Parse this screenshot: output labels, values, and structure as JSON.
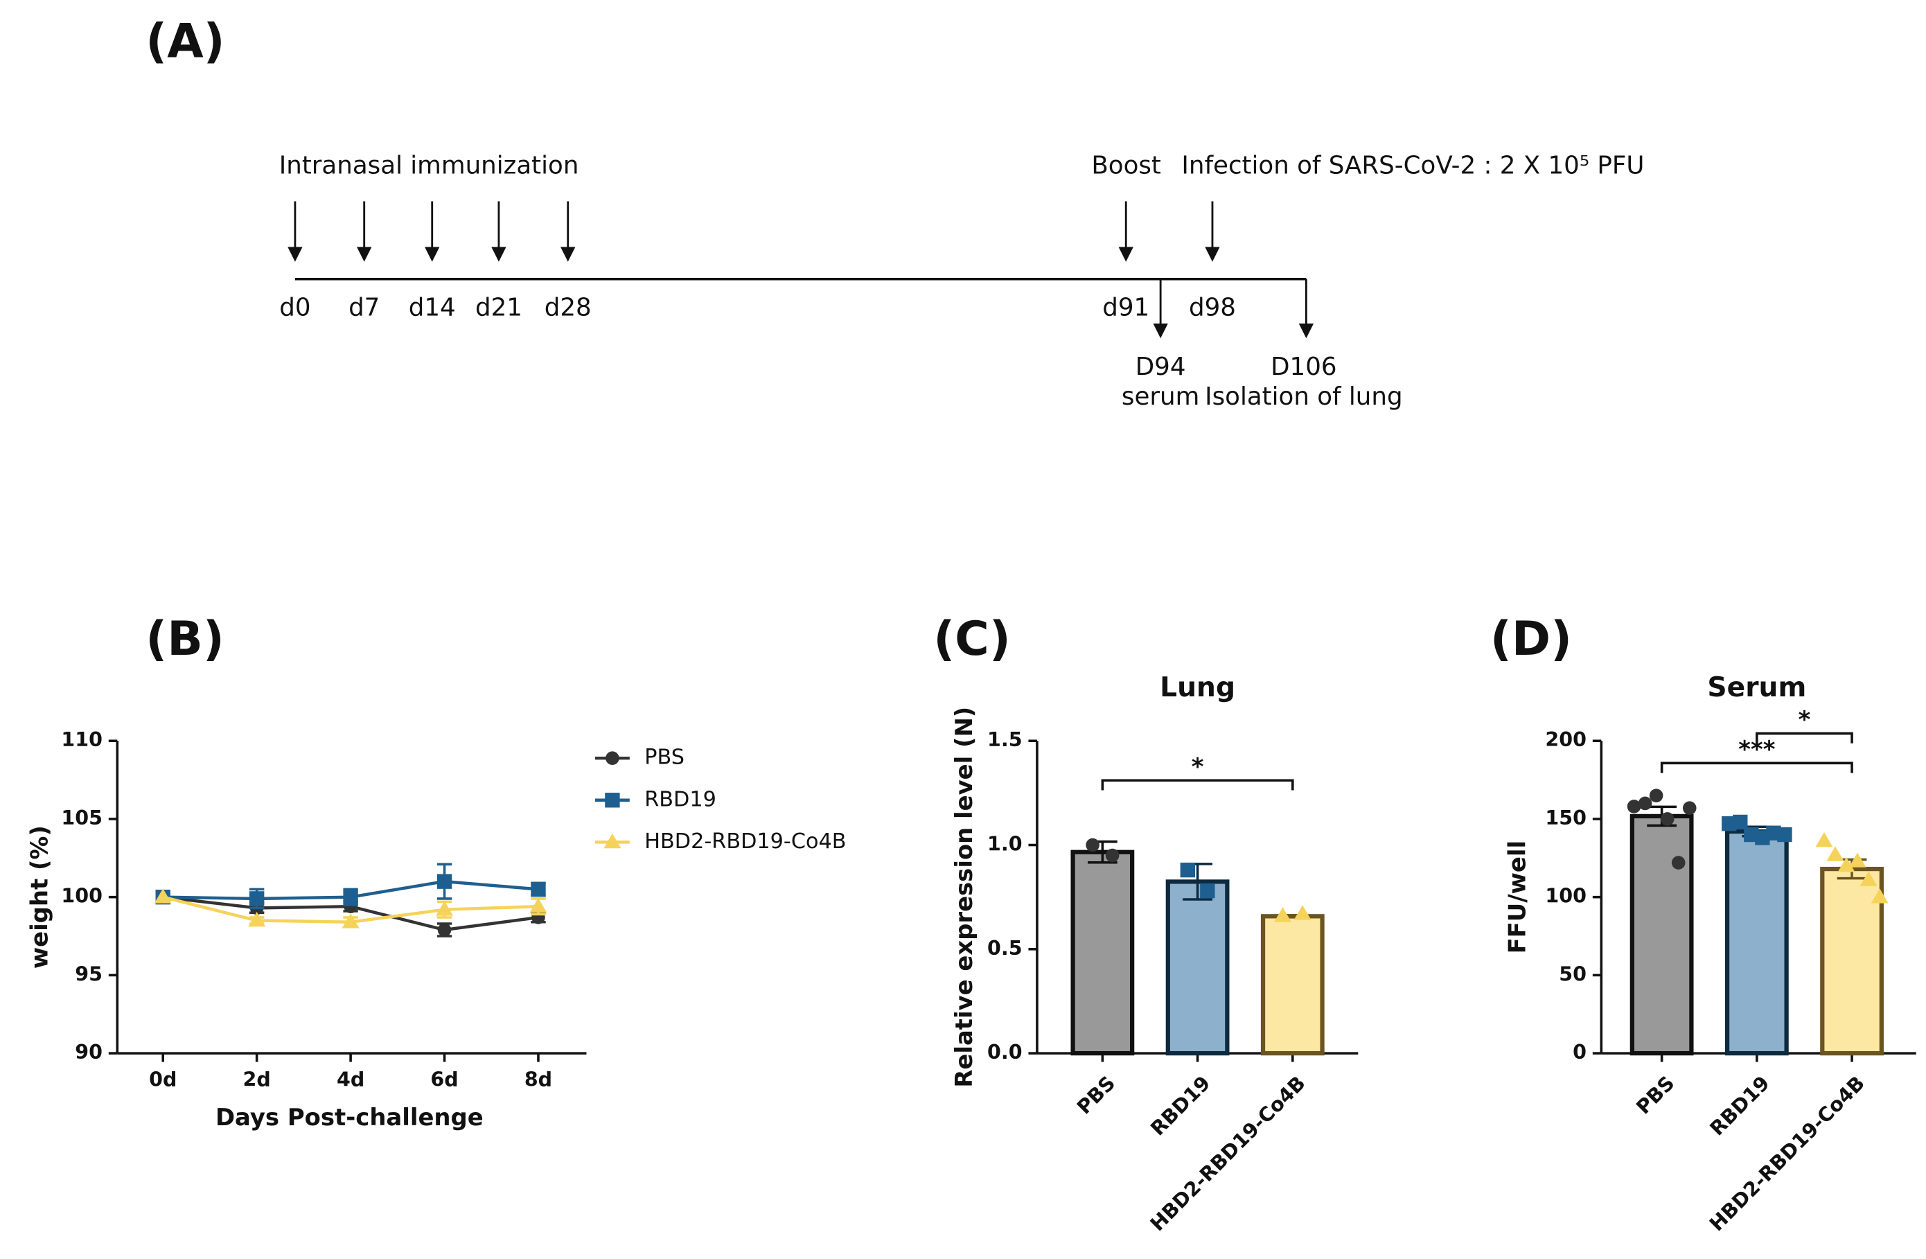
{
  "timeline": {
    "panel": "(A)",
    "above": [
      "Intranasal immunization",
      "Boost",
      "Infection of SARS-CoV-2 : 2 X 10⁵ PFU"
    ],
    "days": [
      "d0",
      "d7",
      "d14",
      "d21",
      "d28",
      "d91",
      "d98"
    ],
    "below": [
      [
        "D94",
        "serum"
      ],
      [
        "D106",
        "Isolation of lung"
      ]
    ]
  },
  "chart_data": [
    {
      "type": "line",
      "panel": "(B)",
      "xlabel": "Days Post-challenge",
      "ylabel": "weight (%)",
      "categories": [
        "0d",
        "2d",
        "4d",
        "6d",
        "8d"
      ],
      "ylim": [
        90,
        110
      ],
      "yticks": [
        90,
        95,
        100,
        105,
        110
      ],
      "legend": "right",
      "series": [
        {
          "name": "PBS",
          "color": "#333333",
          "marker": "circle",
          "values": [
            100,
            99.3,
            99.4,
            97.9,
            98.7
          ],
          "errors": [
            0,
            0.3,
            0.3,
            0.4,
            0.3
          ]
        },
        {
          "name": "RBD19",
          "color": "#1f5f8f",
          "marker": "square",
          "values": [
            100,
            99.9,
            100.0,
            101.0,
            100.5
          ],
          "errors": [
            0,
            0.6,
            0.5,
            1.1,
            0.4
          ]
        },
        {
          "name": "HBD2-RBD19-Co4B",
          "color": "#f5d35a",
          "marker": "triangle",
          "values": [
            100,
            98.5,
            98.4,
            99.2,
            99.4
          ],
          "errors": [
            0,
            0.2,
            0.3,
            0.5,
            0.5
          ]
        }
      ]
    },
    {
      "type": "bar",
      "panel": "(C)",
      "title": "Lung",
      "ylabel": "Relative expression level (N)",
      "categories": [
        "PBS",
        "RBD19",
        "HBD2-RBD19-Co4B"
      ],
      "ylim": [
        0,
        1.5
      ],
      "yticks": [
        {
          "value": 0,
          "label": "0.0"
        },
        0.5,
        {
          "value": 1,
          "label": "1.0"
        },
        1.5
      ],
      "values": [
        0.966,
        0.824,
        0.658
      ],
      "errors": [
        0.05,
        0.085,
        0.005
      ],
      "points": [
        [
          1.0,
          0.95
        ],
        [
          0.88,
          0.78
        ],
        [
          0.66,
          0.67
        ]
      ],
      "fill": [
        "#999999",
        "#8db0cc",
        "#fde8a3"
      ],
      "stroke": [
        "#111111",
        "#0d2a3f",
        "#6b5420"
      ],
      "point_color": [
        "#333333",
        "#1f5f8f",
        "#f5d35a"
      ],
      "significance": [
        {
          "groups": [
            "PBS",
            "HBD2-RBD19-Co4B"
          ],
          "label": "*"
        }
      ]
    },
    {
      "type": "bar",
      "panel": "(D)",
      "title": "Serum",
      "ylabel": "FFU/well",
      "categories": [
        "PBS",
        "RBD19",
        "HBD2-RBD19-Co4B"
      ],
      "ylim": [
        0,
        200
      ],
      "yticks": [
        0,
        50,
        100,
        150,
        200
      ],
      "values": [
        151.8,
        142,
        118
      ],
      "errors": [
        6,
        3,
        6
      ],
      "points": [
        [
          158,
          160,
          165,
          150,
          122,
          157
        ],
        [
          147,
          148,
          140,
          138,
          141,
          140
        ],
        [
          136,
          127,
          120,
          123,
          111,
          100
        ]
      ],
      "fill": [
        "#999999",
        "#8db0cc",
        "#fde8a3"
      ],
      "stroke": [
        "#111111",
        "#0d2a3f",
        "#6b5420"
      ],
      "point_color": [
        "#333333",
        "#1f5f8f",
        "#f5d35a"
      ],
      "significance": [
        {
          "groups": [
            "PBS",
            "HBD2-RBD19-Co4B"
          ],
          "label": "***"
        },
        {
          "groups": [
            "RBD19",
            "HBD2-RBD19-Co4B"
          ],
          "label": "*"
        }
      ]
    }
  ]
}
